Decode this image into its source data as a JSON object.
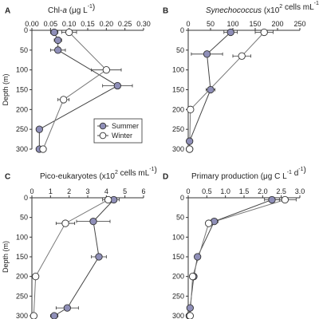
{
  "chart_data": [
    {
      "panel_letter": "A",
      "type": "scatter",
      "title": "Chl-a (μg L-1)",
      "title_parts": [
        {
          "text": "Chl-",
          "style": "normal"
        },
        {
          "text": "a",
          "style": "italic"
        },
        {
          "text": " (μg L",
          "style": "normal"
        },
        {
          "text": "-1",
          "style": "sup"
        },
        {
          "text": ")",
          "style": "normal"
        }
      ],
      "ylabel": "Depth (m)",
      "xlim": [
        0,
        0.3
      ],
      "ylim": [
        0,
        300
      ],
      "x_ticks": [
        0.0,
        0.05,
        0.1,
        0.15,
        0.2,
        0.25,
        0.3
      ],
      "x_tick_labels": [
        "0.00",
        "0.05",
        "0.10",
        "0.15",
        "0.20",
        "0.25",
        "0.30"
      ],
      "y_ticks": [
        0,
        50,
        100,
        150,
        200,
        250,
        300
      ],
      "y_tick_labels": [
        "0",
        "50",
        "100",
        "150",
        "200",
        "250",
        "300"
      ],
      "legend": "bottom-right",
      "series": [
        {
          "name": "Summer",
          "color": "#8f8fb8",
          "depth": [
            5,
            25,
            50,
            140,
            250,
            300
          ],
          "values": [
            0.06,
            0.07,
            0.07,
            0.23,
            0.02,
            0.02
          ],
          "error": [
            0.01,
            0.01,
            0.02,
            0.04,
            0.0,
            0.0
          ]
        },
        {
          "name": "Winter",
          "color": "#ffffff",
          "depth": [
            5,
            100,
            175,
            300
          ],
          "values": [
            0.1,
            0.2,
            0.085,
            0.03
          ],
          "error": [
            0.02,
            0.04,
            0.015,
            0.0
          ]
        }
      ]
    },
    {
      "panel_letter": "B",
      "type": "scatter",
      "title": "Synechococcus (x10^2 cells mL-1)",
      "title_parts": [
        {
          "text": "Synechococcus",
          "style": "italic"
        },
        {
          "text": " (x10",
          "style": "normal"
        },
        {
          "text": "2",
          "style": "sup"
        },
        {
          "text": " cells mL",
          "style": "normal"
        },
        {
          "text": "-1",
          "style": "sup"
        },
        {
          "text": ")",
          "style": "normal"
        }
      ],
      "ylabel": "",
      "xlim": [
        0,
        250
      ],
      "ylim": [
        0,
        300
      ],
      "x_ticks": [
        0,
        50,
        100,
        150,
        200,
        250
      ],
      "x_tick_labels": [
        "0",
        "50",
        "100",
        "150",
        "200",
        "250"
      ],
      "y_ticks": [
        0,
        50,
        100,
        150,
        200,
        250,
        300
      ],
      "y_tick_labels": [
        "0",
        "50",
        "100",
        "150",
        "200",
        "250",
        "300"
      ],
      "series": [
        {
          "name": "Summer",
          "color": "#8f8fb8",
          "depth": [
            5,
            60,
            150,
            280,
            300
          ],
          "values": [
            95,
            42,
            50,
            3,
            3
          ],
          "error": [
            15,
            35,
            10,
            0,
            0
          ]
        },
        {
          "name": "Winter",
          "color": "#ffffff",
          "depth": [
            5,
            65,
            200,
            300
          ],
          "values": [
            170,
            120,
            5,
            3
          ],
          "error": [
            20,
            20,
            0,
            0
          ]
        }
      ]
    },
    {
      "panel_letter": "C",
      "type": "scatter",
      "title": "Pico-eukaryotes (x10^2 cells mL-1)",
      "title_parts": [
        {
          "text": "Pico-eukaryotes (x10",
          "style": "normal"
        },
        {
          "text": "2",
          "style": "sup"
        },
        {
          "text": " cells mL",
          "style": "normal"
        },
        {
          "text": "-1",
          "style": "sup"
        },
        {
          "text": ")",
          "style": "normal"
        }
      ],
      "ylabel": "Depth (m)",
      "xlim": [
        0,
        6
      ],
      "ylim": [
        0,
        300
      ],
      "x_ticks": [
        0,
        1,
        2,
        3,
        4,
        5,
        6
      ],
      "x_tick_labels": [
        "0",
        "1",
        "2",
        "3",
        "4",
        "5",
        "6"
      ],
      "y_ticks": [
        0,
        50,
        100,
        150,
        200,
        250,
        300
      ],
      "y_tick_labels": [
        "0",
        "50",
        "100",
        "150",
        "200",
        "250",
        "300"
      ],
      "series": [
        {
          "name": "Summer",
          "color": "#8f8fb8",
          "depth": [
            5,
            60,
            150,
            280,
            300
          ],
          "values": [
            4.4,
            3.3,
            3.6,
            1.9,
            1.2
          ],
          "error": [
            0.3,
            0.9,
            0.4,
            0.6,
            0.2
          ]
        },
        {
          "name": "Winter",
          "color": "#ffffff",
          "depth": [
            5,
            65,
            200,
            300
          ],
          "values": [
            4.1,
            1.8,
            0.2,
            0.1
          ],
          "error": [
            0.3,
            0.5,
            0.0,
            0.0
          ]
        }
      ]
    },
    {
      "panel_letter": "D",
      "type": "scatter",
      "title": "Primary production (μg C L-1 d-1)",
      "title_parts": [
        {
          "text": "Primary production (μg C L",
          "style": "normal"
        },
        {
          "text": "-1",
          "style": "sup"
        },
        {
          "text": " d",
          "style": "normal"
        },
        {
          "text": "-1",
          "style": "sup"
        },
        {
          "text": ")",
          "style": "normal"
        }
      ],
      "ylabel": "",
      "xlim": [
        0,
        3.0
      ],
      "ylim": [
        0,
        300
      ],
      "x_ticks": [
        0,
        0.5,
        1.0,
        1.5,
        2.0,
        2.5,
        3.0
      ],
      "x_tick_labels": [
        "0",
        "0.5",
        "1.0",
        "1.5",
        "2.0",
        "2.5",
        "3.0"
      ],
      "y_ticks": [
        0,
        50,
        100,
        150,
        200,
        250,
        300
      ],
      "y_tick_labels": [
        "0",
        "50",
        "100",
        "150",
        "200",
        "250",
        "300"
      ],
      "series": [
        {
          "name": "Summer",
          "color": "#8f8fb8",
          "depth": [
            5,
            60,
            150,
            200,
            280,
            300
          ],
          "values": [
            2.25,
            0.7,
            0.25,
            0.15,
            0.05,
            0.03
          ],
          "error": [
            0.2,
            0.1,
            0.05,
            0.0,
            0.0,
            0.0
          ]
        },
        {
          "name": "Winter",
          "color": "#ffffff",
          "depth": [
            5,
            65,
            200,
            300
          ],
          "values": [
            2.6,
            0.55,
            0.12,
            0.05
          ],
          "error": [
            0.3,
            0.08,
            0.0,
            0.0
          ]
        }
      ]
    }
  ]
}
